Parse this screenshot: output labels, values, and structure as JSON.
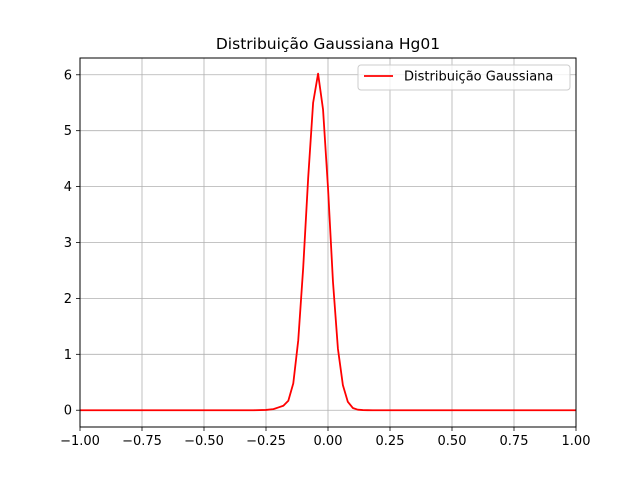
{
  "chart_data": {
    "type": "line",
    "title": "Distribuição Gaussiana Hg01",
    "xlabel": "",
    "ylabel": "",
    "xlim": [
      -1.0,
      1.0
    ],
    "ylim": [
      -0.3,
      6.3
    ],
    "grid": true,
    "legend_placement": "top-right",
    "x_ticks": [
      -1.0,
      -0.75,
      -0.5,
      -0.25,
      0.0,
      0.25,
      0.5,
      0.75,
      1.0
    ],
    "x_tick_labels": [
      "−1.00",
      "−0.75",
      "−0.50",
      "−0.25",
      "0.00",
      "0.25",
      "0.50",
      "0.75",
      "1.00"
    ],
    "y_ticks": [
      0,
      1,
      2,
      3,
      4,
      5,
      6
    ],
    "y_tick_labels": [
      "0",
      "1",
      "2",
      "3",
      "4",
      "5",
      "6"
    ],
    "series": [
      {
        "name": "Distribuição Gaussiana",
        "color": "#ff0000",
        "x": [
          -1.0,
          -0.3,
          -0.25,
          -0.22,
          -0.2,
          -0.18,
          -0.16,
          -0.14,
          -0.12,
          -0.1,
          -0.08,
          -0.06,
          -0.04,
          -0.02,
          0.0,
          0.02,
          0.04,
          0.06,
          0.08,
          0.1,
          0.12,
          0.14,
          0.16,
          0.18,
          0.2,
          0.22,
          0.24,
          0.26,
          0.3,
          1.0
        ],
        "values": [
          0.0,
          0.0,
          0.005,
          0.02,
          0.05,
          0.08,
          0.17,
          0.48,
          1.25,
          2.55,
          4.15,
          5.5,
          6.02,
          5.38,
          3.98,
          2.3,
          1.1,
          0.45,
          0.15,
          0.04,
          0.01,
          0.003,
          0.001,
          0.0,
          0.0,
          0.0,
          0.0,
          0.0,
          0.0,
          0.0
        ]
      }
    ]
  }
}
